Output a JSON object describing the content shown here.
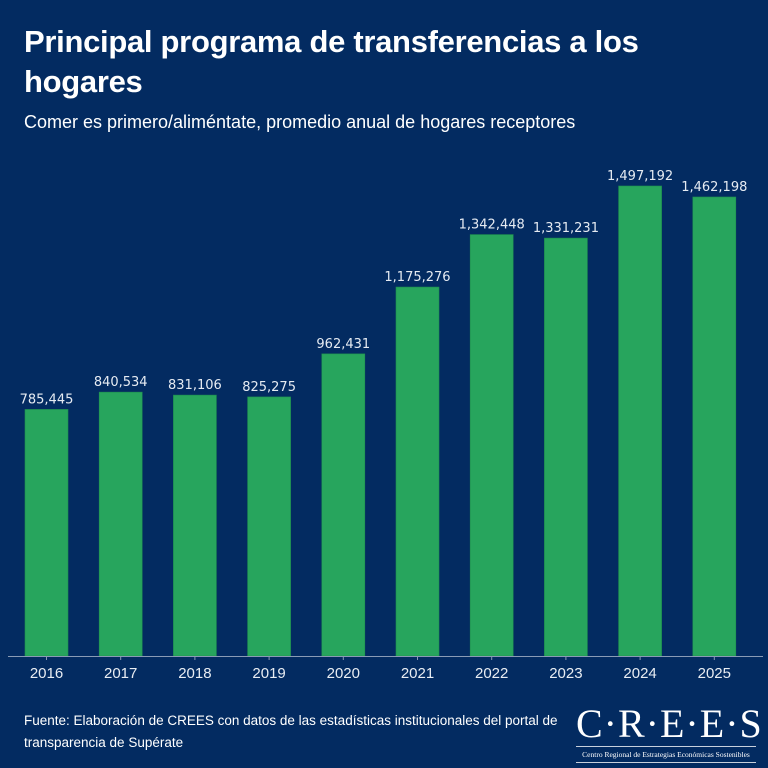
{
  "header": {
    "title": "Principal programa de transferencias a los hogares",
    "subtitle": "Comer es primero/aliméntate, promedio anual de hogares receptores"
  },
  "footer": {
    "source": "Fuente: Elaboración de CREES con datos de las estadísticas institucionales del portal de transparencia de Supérate",
    "logo_text": "C·R·E·E·S",
    "logo_subtitle": "Centro Regional de Estrategias Económicas Sostenibles"
  },
  "colors": {
    "background": "#032b61",
    "bar": "#27a55d",
    "text": "#ffffff"
  },
  "chart_data": {
    "type": "bar",
    "title": "Principal programa de transferencias a los hogares",
    "subtitle": "Comer es primero/aliméntate, promedio anual de hogares receptores",
    "xlabel": "",
    "ylabel": "",
    "categories": [
      "2016",
      "2017",
      "2018",
      "2019",
      "2020",
      "2021",
      "2022",
      "2023",
      "2024",
      "2025"
    ],
    "values": [
      785445,
      840534,
      831106,
      825275,
      962431,
      1175276,
      1342448,
      1331231,
      1497192,
      1462198
    ],
    "labels": [
      "785,445",
      "840,534",
      "831,106",
      "825,275",
      "962,431",
      "1,175,276",
      "1,342,448",
      "1,331,231",
      "1,497,192",
      "1,462,198"
    ],
    "ylim": [
      0,
      1497192
    ],
    "grid": false,
    "legend": "none"
  }
}
